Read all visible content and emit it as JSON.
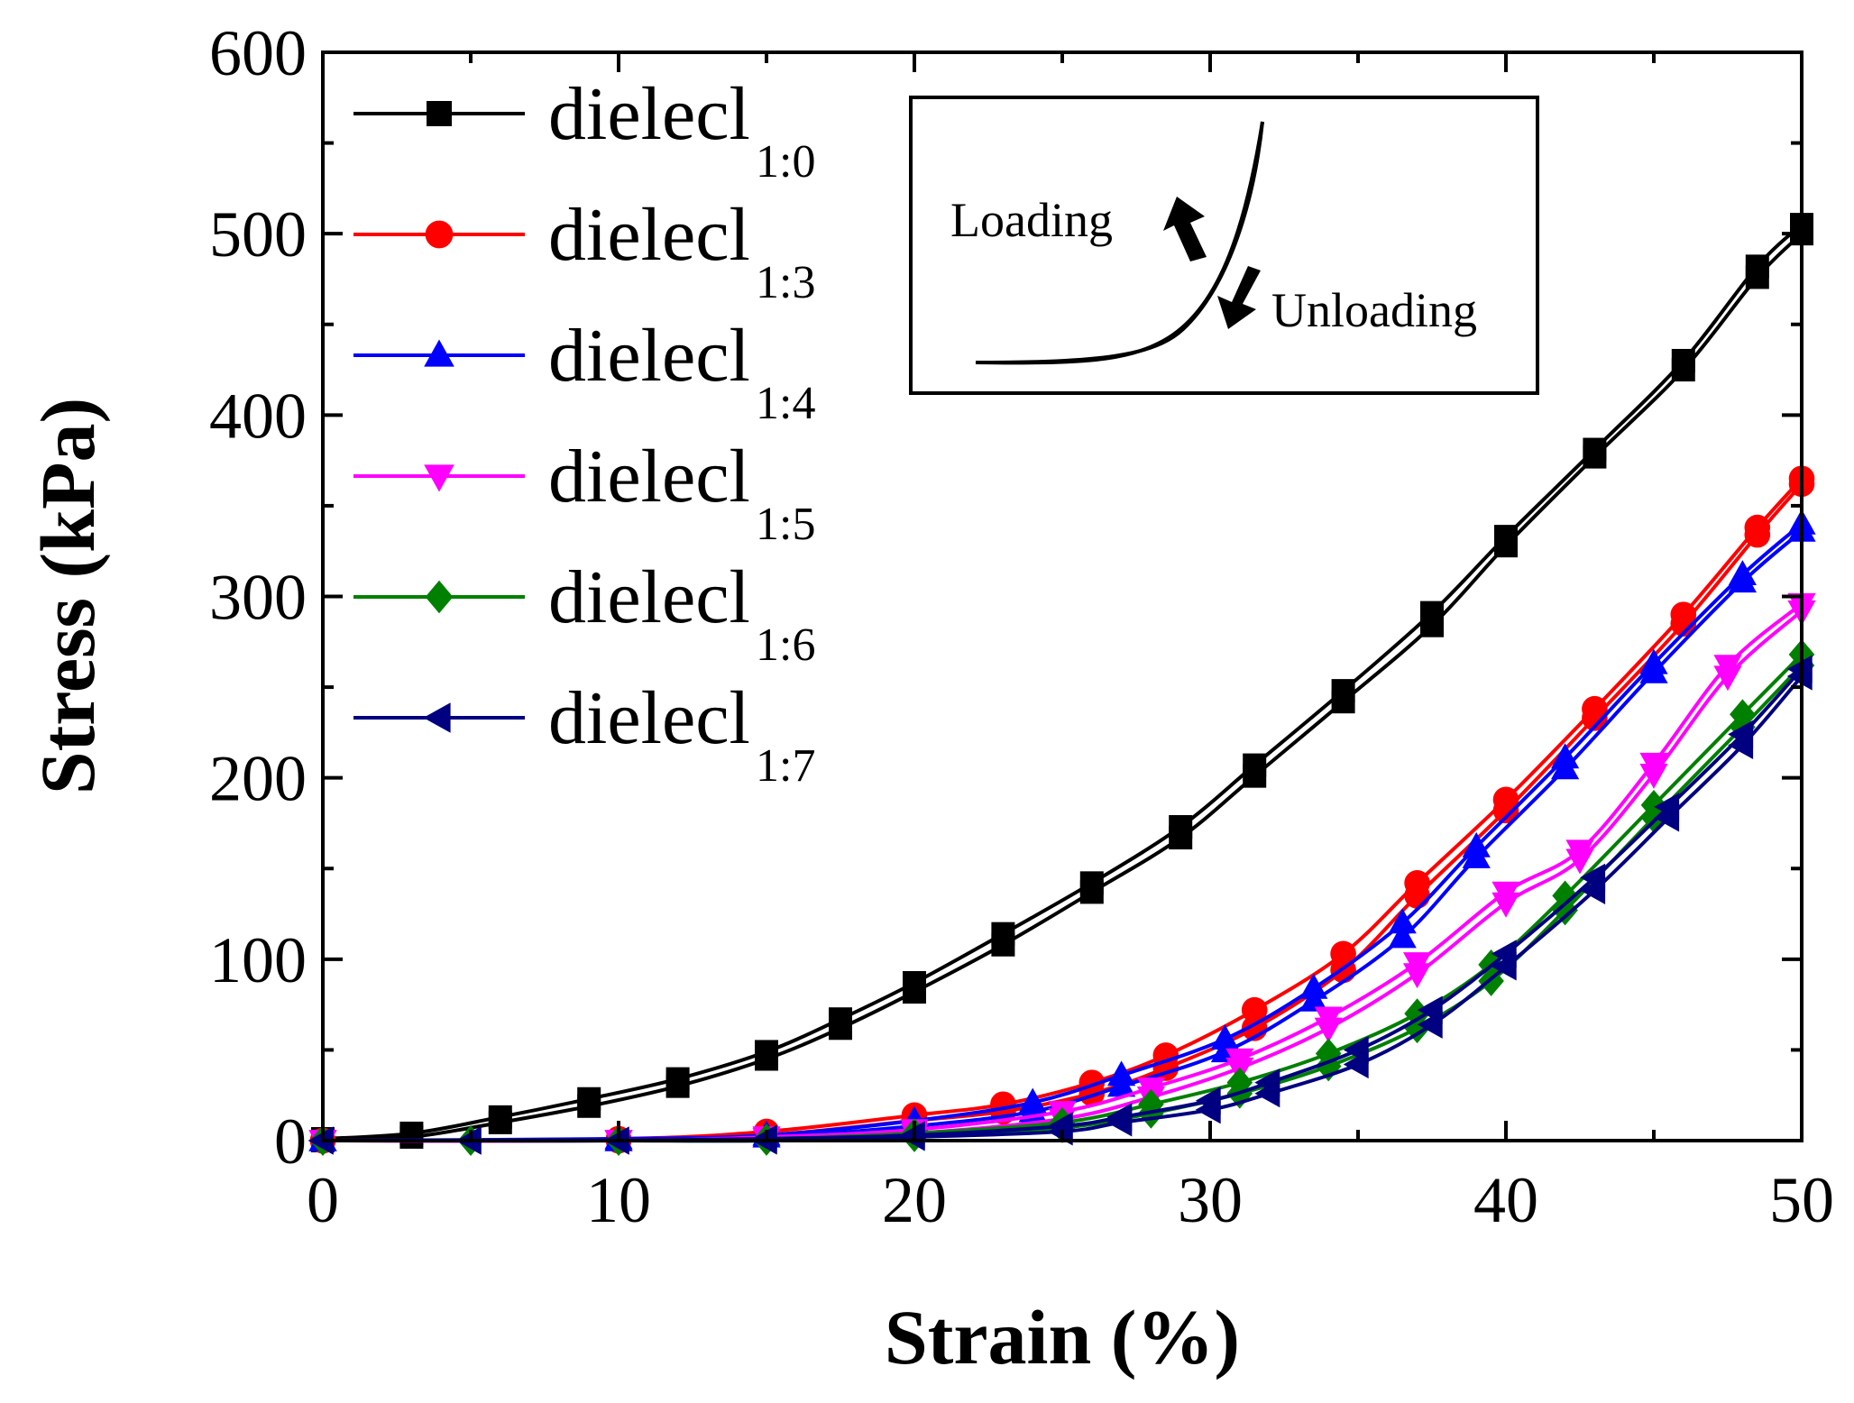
{
  "chart_data": {
    "type": "line",
    "title": "",
    "xlabel": "Strain (%)",
    "ylabel": "Stress (kPa)",
    "xlim": [
      0,
      50
    ],
    "ylim": [
      0,
      600
    ],
    "xticks": [
      0,
      10,
      20,
      30,
      40,
      50
    ],
    "yticks": [
      0,
      100,
      200,
      300,
      400,
      500,
      600
    ],
    "xtick_labels": [
      "0",
      "10",
      "20",
      "30",
      "40",
      "50"
    ],
    "ytick_labels": [
      "0",
      "100",
      "200",
      "300",
      "400",
      "500",
      "600"
    ],
    "legend_position": "top-left",
    "series": [
      {
        "name": "dielecl",
        "subscript": "1:0",
        "color": "#000000",
        "marker": "square",
        "x": [
          0,
          3,
          6,
          9,
          12,
          15,
          17.5,
          20,
          23,
          26,
          29,
          31.5,
          34.5,
          37.5,
          40,
          43,
          46,
          48.5,
          50
        ],
        "loading": [
          1,
          4,
          13,
          23,
          34,
          49,
          67,
          87,
          114,
          142,
          173,
          207,
          248,
          291,
          333,
          381,
          430,
          482,
          505
        ],
        "unloading": [
          0,
          2,
          10,
          19,
          30,
          45,
          62,
          82,
          108,
          137,
          167,
          201,
          242,
          284,
          328,
          377,
          425,
          476,
          500
        ]
      },
      {
        "name": "dielecl",
        "subscript": "1:3",
        "color": "#ff0000",
        "marker": "circle",
        "x": [
          0,
          10,
          15,
          20,
          23,
          26,
          28.5,
          31.5,
          34.5,
          37,
          40,
          43,
          46,
          48.5,
          50
        ],
        "loading": [
          0,
          1,
          5,
          14,
          20,
          32,
          47,
          72,
          103,
          142,
          188,
          238,
          290,
          338,
          365
        ],
        "unloading": [
          0,
          0,
          3,
          11,
          16,
          26,
          40,
          62,
          94,
          135,
          182,
          233,
          285,
          334,
          362
        ]
      },
      {
        "name": "dielecl",
        "subscript": "1:4",
        "color": "#0000ff",
        "marker": "triangle-up",
        "x": [
          0,
          10,
          15,
          20,
          24,
          27,
          30.5,
          33.5,
          36.5,
          39,
          42,
          45,
          48,
          50
        ],
        "loading": [
          0,
          1,
          3,
          11,
          21,
          36,
          56,
          84,
          120,
          162,
          211,
          263,
          312,
          340
        ],
        "unloading": [
          0,
          0,
          2,
          8,
          16,
          30,
          49,
          77,
          112,
          156,
          205,
          258,
          308,
          336
        ]
      },
      {
        "name": "dielecl",
        "subscript": "1:5",
        "color": "#ff00ff",
        "marker": "triangle-down",
        "x": [
          0,
          10,
          15,
          20,
          25,
          28,
          31,
          34,
          37,
          40,
          42.5,
          45,
          47.5,
          50
        ],
        "loading": [
          0,
          0,
          2,
          6,
          16,
          29,
          45,
          68,
          98,
          137,
          160,
          208,
          262,
          296
        ],
        "unloading": [
          0,
          0,
          1,
          4,
          12,
          24,
          40,
          62,
          92,
          131,
          155,
          202,
          256,
          292
        ]
      },
      {
        "name": "dielecl",
        "subscript": "1:6",
        "color": "#008000",
        "marker": "diamond",
        "x": [
          0,
          5,
          10,
          15,
          20,
          25,
          28,
          31,
          34,
          37,
          39.5,
          42,
          45,
          48,
          50
        ],
        "loading": [
          0,
          0,
          0,
          1,
          4,
          10,
          20,
          32,
          48,
          70,
          97,
          135,
          185,
          235,
          268
        ],
        "unloading": [
          0,
          0,
          0,
          0,
          2,
          7,
          15,
          26,
          41,
          62,
          88,
          127,
          178,
          228,
          262
        ]
      },
      {
        "name": "dielecl",
        "subscript": "1:7",
        "color": "#000080",
        "marker": "triangle-left",
        "x": [
          0,
          5,
          10,
          15,
          20,
          25,
          27,
          30,
          32,
          35,
          37.5,
          40,
          43,
          45.5,
          48,
          50
        ],
        "loading": [
          0,
          0,
          0,
          1,
          3,
          8,
          13,
          22,
          32,
          50,
          72,
          103,
          145,
          184,
          224,
          260
        ],
        "unloading": [
          0,
          0,
          0,
          0,
          2,
          5,
          10,
          17,
          26,
          42,
          64,
          96,
          138,
          178,
          218,
          256
        ]
      }
    ],
    "inset": {
      "loading_label": "Loading",
      "unloading_label": "Unloading"
    }
  }
}
